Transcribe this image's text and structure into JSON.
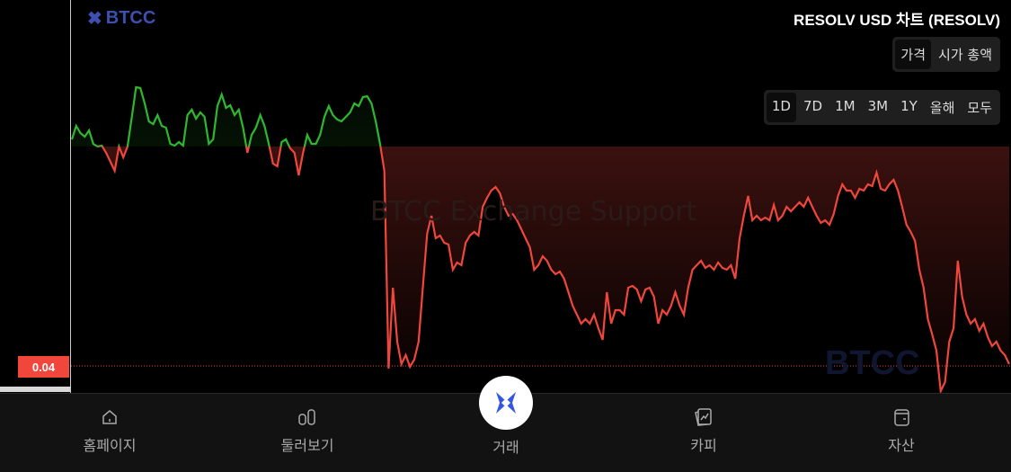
{
  "header": {
    "logo": "BTCC",
    "title": "RESOLV USD 차트 (RESOLV)"
  },
  "metric_tabs": [
    {
      "label": "가격",
      "active": true
    },
    {
      "label": "시가 총액",
      "active": false
    }
  ],
  "range_tabs": [
    {
      "label": "1D",
      "active": true
    },
    {
      "label": "7D"
    },
    {
      "label": "1M"
    },
    {
      "label": "3M"
    },
    {
      "label": "1Y"
    },
    {
      "label": "올해"
    },
    {
      "label": "모두"
    }
  ],
  "watermark": "BTCC Exchange Support",
  "watermark_logo": "BTCC",
  "nav": [
    {
      "label": "홈페이지",
      "icon": "home-icon"
    },
    {
      "label": "둘러보기",
      "icon": "explore-icon"
    },
    {
      "label": "거래",
      "icon": "btcc-trade-icon"
    },
    {
      "label": "카피",
      "icon": "copy-trade-icon"
    },
    {
      "label": "자산",
      "icon": "wallet-icon"
    }
  ],
  "colors": {
    "up": "#2fb82f",
    "down": "#f0463c",
    "brand": "#3d4fb0"
  },
  "chart_data": {
    "type": "area",
    "current_price_label": "0.04",
    "current_price": 0.04,
    "baseline": 0.04244,
    "values": [
      0.04252,
      0.04267,
      0.04259,
      0.04255,
      0.04262,
      0.04247,
      0.04244,
      0.04245,
      0.04237,
      0.04227,
      0.04217,
      0.04244,
      0.04232,
      0.04244,
      0.04277,
      0.0431,
      0.04309,
      0.04292,
      0.04272,
      0.04269,
      0.04279,
      0.04267,
      0.04265,
      0.04247,
      0.04245,
      0.04249,
      0.04245,
      0.04279,
      0.04285,
      0.04275,
      0.04282,
      0.04277,
      0.04247,
      0.04252,
      0.04289,
      0.04302,
      0.04287,
      0.0429,
      0.04279,
      0.04285,
      0.04265,
      0.04237,
      0.04257,
      0.04265,
      0.04279,
      0.04267,
      0.04247,
      0.04225,
      0.04222,
      0.04249,
      0.04252,
      0.04242,
      0.04237,
      0.04212,
      0.04237,
      0.04257,
      0.04247,
      0.04247,
      0.04257,
      0.04277,
      0.04289,
      0.04279,
      0.04274,
      0.04272,
      0.04277,
      0.04282,
      0.04292,
      0.04289,
      0.04299,
      0.043,
      0.04292,
      0.04272,
      0.04247,
      0.04217,
      0.03997,
      0.04087,
      0.04027,
      0.04002,
      0.04012,
      0.03999,
      0.04007,
      0.04027,
      0.04087,
      0.04147,
      0.04167,
      0.04142,
      0.04145,
      0.04137,
      0.04135,
      0.04107,
      0.04115,
      0.04112,
      0.04137,
      0.04145,
      0.04149,
      0.04145,
      0.04177,
      0.04187,
      0.04195,
      0.04199,
      0.04192,
      0.04177,
      0.04167,
      0.04169,
      0.04162,
      0.04152,
      0.04142,
      0.04132,
      0.04107,
      0.04112,
      0.04122,
      0.04117,
      0.04107,
      0.04102,
      0.04105,
      0.04097,
      0.04082,
      0.04067,
      0.04057,
      0.04047,
      0.04052,
      0.04047,
      0.04057,
      0.04042,
      0.04029,
      0.04082,
      0.04047,
      0.04062,
      0.04062,
      0.04057,
      0.04087,
      0.04089,
      0.04085,
      0.04072,
      0.04085,
      0.04087,
      0.04077,
      0.04047,
      0.04062,
      0.04057,
      0.04067,
      0.04082,
      0.04067,
      0.04057,
      0.04087,
      0.04107,
      0.04112,
      0.04117,
      0.04109,
      0.04112,
      0.04107,
      0.04115,
      0.04109,
      0.04107,
      0.04112,
      0.04097,
      0.04142,
      0.04167,
      0.04189,
      0.04162,
      0.04167,
      0.04162,
      0.04165,
      0.04162,
      0.04179,
      0.04162,
      0.04167,
      0.04177,
      0.04172,
      0.04177,
      0.04182,
      0.04177,
      0.04187,
      0.04177,
      0.04167,
      0.04159,
      0.04162,
      0.04157,
      0.04169,
      0.04189,
      0.04202,
      0.04195,
      0.04195,
      0.04187,
      0.04197,
      0.04195,
      0.04202,
      0.042,
      0.04215,
      0.04197,
      0.04195,
      0.04202,
      0.04207,
      0.04195,
      0.04177,
      0.04157,
      0.04149,
      0.04139,
      0.04107,
      0.04087,
      0.04052,
      0.04035,
      0.04017,
      0.03972,
      0.03982,
      0.04027,
      0.04042,
      0.04117,
      0.04077,
      0.04057,
      0.04047,
      0.04052,
      0.04039,
      0.04047,
      0.04032,
      0.04022,
      0.04027,
      0.04017,
      0.04012,
      0.04002
    ]
  }
}
